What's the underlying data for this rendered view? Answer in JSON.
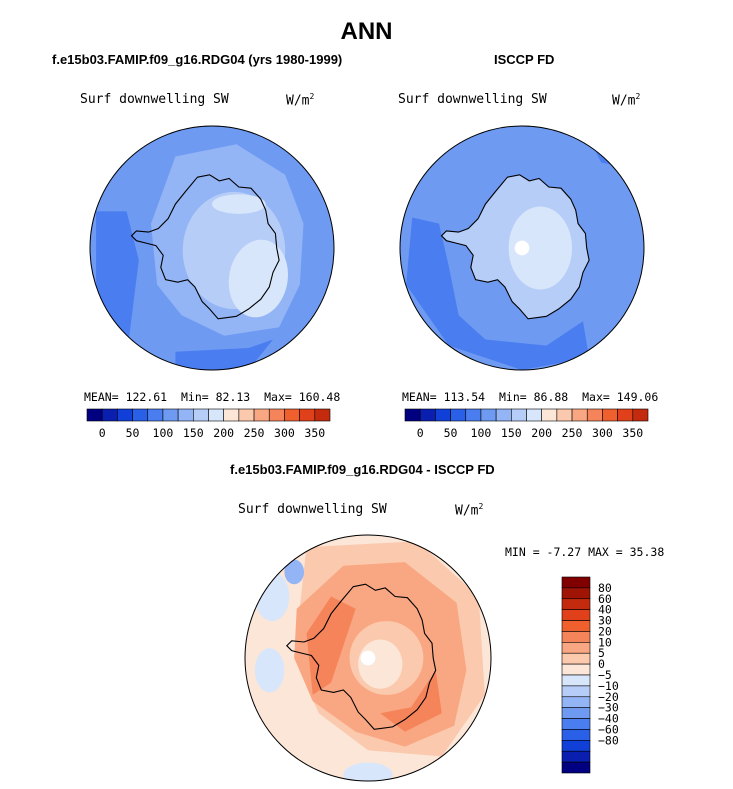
{
  "title": "ANN",
  "palette": {
    "cool": [
      "#000080",
      "#0a1fb0",
      "#1040d8",
      "#2a5fe8",
      "#4a7ef0",
      "#6e9af2",
      "#93b5f5",
      "#b6cdf8",
      "#d8e6fb"
    ],
    "warm": [
      "#fbe6d8",
      "#fbc9ad",
      "#f9a782",
      "#f6845a",
      "#f0602f",
      "#e0411a",
      "#c42b0e",
      "#a01405",
      "#800000"
    ],
    "neutral": "#f2f2f2"
  },
  "chart_data": [
    {
      "type": "heatmap",
      "projection": "south-polar-stereographic",
      "title": "f.e15b03.FAMIP.f09_g16.RDG04 (yrs 1980-1999)",
      "field": "Surf downwelling SW",
      "units": "W/m",
      "units_exp": "2",
      "stats": {
        "mean": 122.61,
        "min": 82.13,
        "max": 160.48
      },
      "stats_labels": {
        "mean": "MEAN=",
        "min": "Min=",
        "max": "Max="
      },
      "colorbar": {
        "orientation": "horizontal",
        "ticks": [
          "0",
          "50",
          "100",
          "150",
          "200",
          "250",
          "300",
          "350"
        ],
        "levels": 16
      }
    },
    {
      "type": "heatmap",
      "projection": "south-polar-stereographic",
      "title": "ISCCP FD",
      "field": "Surf downwelling SW",
      "units": "W/m",
      "units_exp": "2",
      "stats": {
        "mean": 113.54,
        "min": 86.88,
        "max": 149.06
      },
      "stats_labels": {
        "mean": "MEAN=",
        "min": "Min=",
        "max": "Max="
      },
      "colorbar": {
        "orientation": "horizontal",
        "ticks": [
          "0",
          "50",
          "100",
          "150",
          "200",
          "250",
          "300",
          "350"
        ],
        "levels": 16
      }
    },
    {
      "type": "heatmap",
      "projection": "south-polar-stereographic",
      "title": "f.e15b03.FAMIP.f09_g16.RDG04 - ISCCP FD",
      "field": "Surf downwelling SW",
      "units": "W/m",
      "units_exp": "2",
      "stats_text": "MIN =  -7.27 MAX =  35.38",
      "colorbar": {
        "orientation": "vertical",
        "ticks": [
          "80",
          "60",
          "40",
          "30",
          "20",
          "10",
          "5",
          "0",
          "−5",
          "−10",
          "−20",
          "−30",
          "−40",
          "−60",
          "−80"
        ]
      }
    }
  ]
}
